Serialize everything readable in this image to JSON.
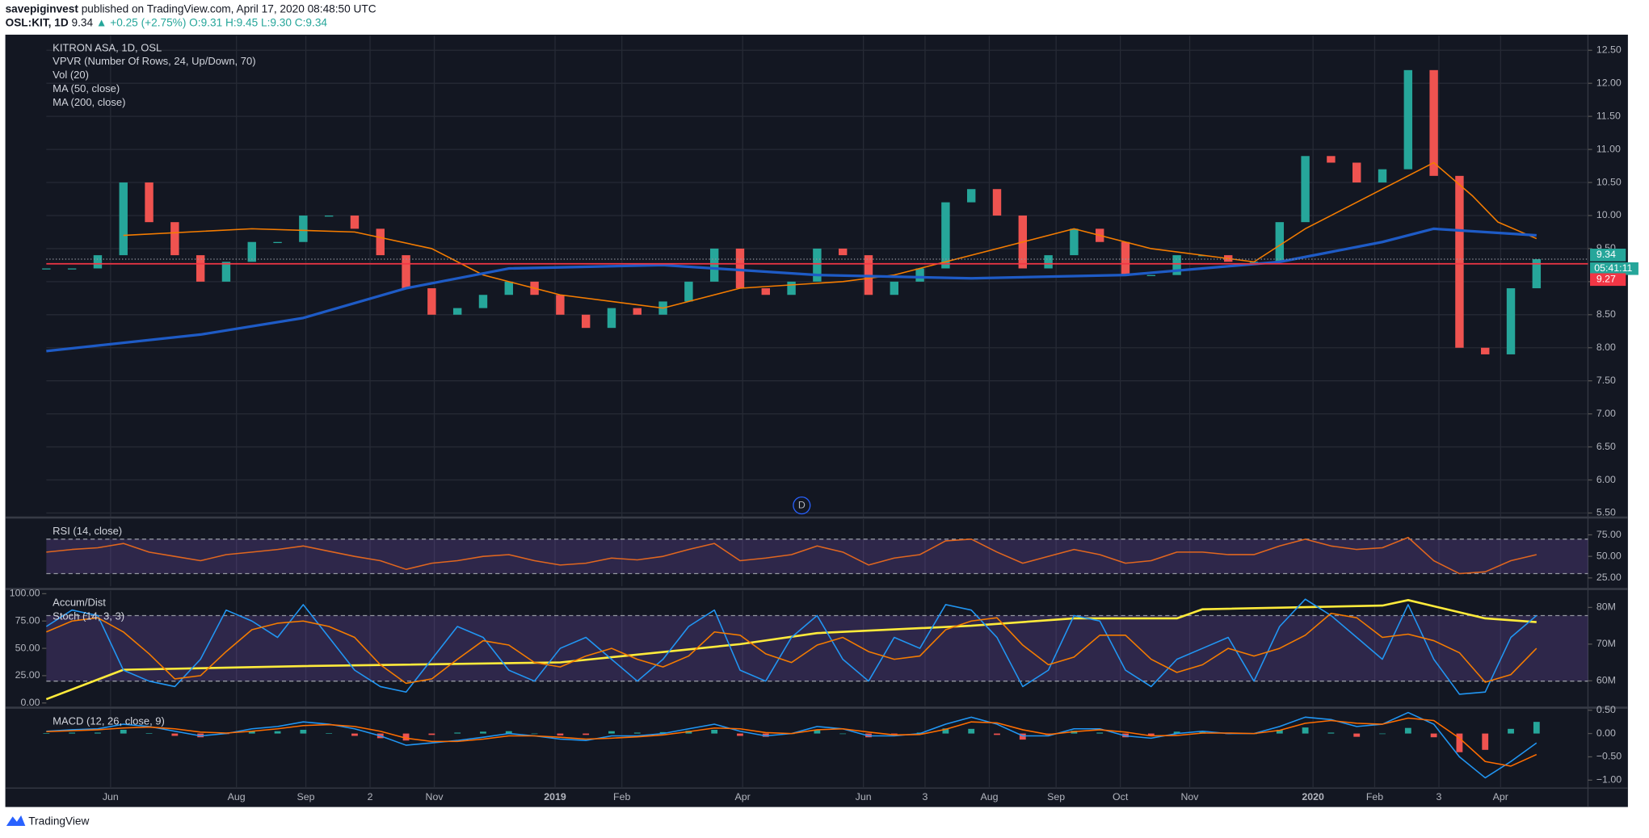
{
  "header": {
    "publisher": "savepiginvest",
    "published": "published on TradingView.com, April 17, 2020 08:48:50 UTC",
    "symbol": "OSL:KIT, 1D",
    "last": "9.34",
    "change": "▲ +0.25 (+2.75%)",
    "ohlc": [
      "O:9.31",
      "H:9.45",
      "L:9.30",
      "C:9.34"
    ]
  },
  "footer": "TradingView",
  "chart_data": [
    {
      "type": "line",
      "title": "KITRON ASA, 1D, OSL",
      "studies": [
        "VPVR (Number Of Rows, 24, Up/Down, 70)",
        "Vol (20)"
      ],
      "xlim": [
        0,
        60
      ],
      "xticks": [
        {
          "value": 2.5,
          "label": "Jun"
        },
        {
          "value": 7.4,
          "label": "Aug"
        },
        {
          "value": 10.1,
          "label": "Sep"
        },
        {
          "value": 12.6,
          "label": "2"
        },
        {
          "value": 15.1,
          "label": "Nov"
        },
        {
          "value": 19.8,
          "label": "2019"
        },
        {
          "value": 22.4,
          "label": "Feb"
        },
        {
          "value": 27.1,
          "label": "Apr"
        },
        {
          "value": 31.8,
          "label": "Jun"
        },
        {
          "value": 34.2,
          "label": "3"
        },
        {
          "value": 36.7,
          "label": "Aug"
        },
        {
          "value": 39.3,
          "label": "Sep"
        },
        {
          "value": 41.8,
          "label": "Oct"
        },
        {
          "value": 44.5,
          "label": "Nov"
        },
        {
          "value": 49.3,
          "label": "2020"
        },
        {
          "value": 51.7,
          "label": "Feb"
        },
        {
          "value": 54.2,
          "label": "3"
        },
        {
          "value": 56.6,
          "label": "Apr"
        }
      ],
      "x": [
        0,
        1,
        2,
        3,
        4,
        5,
        6,
        7,
        8,
        9,
        10,
        11,
        12,
        13,
        14,
        15,
        16,
        17,
        18,
        19,
        20,
        21,
        22,
        23,
        24,
        25,
        26,
        27,
        28,
        29,
        30,
        31,
        32,
        33,
        34,
        35,
        36,
        37,
        38,
        39,
        40,
        41,
        42,
        43,
        44,
        45,
        46,
        47,
        48,
        49,
        50,
        51,
        52,
        53,
        54,
        55,
        56,
        57,
        58
      ],
      "ylim": [
        5.44,
        12.72
      ],
      "yticks": [
        {
          "value": 5.5,
          "label": "5.50"
        },
        {
          "value": 6,
          "label": "6.00"
        },
        {
          "value": 6.5,
          "label": "6.50"
        },
        {
          "value": 7,
          "label": "7.00"
        },
        {
          "value": 7.5,
          "label": "7.50"
        },
        {
          "value": 8,
          "label": "8.00"
        },
        {
          "value": 8.5,
          "label": "8.50"
        },
        {
          "value": 9,
          "label": "9.00"
        },
        {
          "value": 9.5,
          "label": "9.50"
        },
        {
          "value": 10,
          "label": "10.00"
        },
        {
          "value": 10.5,
          "label": "10.50"
        },
        {
          "value": 11,
          "label": "11.00"
        },
        {
          "value": 11.5,
          "label": "11.50"
        },
        {
          "value": 12,
          "label": "12.00"
        },
        {
          "value": 12.5,
          "label": "12.50"
        }
      ],
      "grid": true,
      "series": [
        {
          "type": "bars",
          "up_color": "#26a69a",
          "down_color": "#ef5350",
          "values": [
            9.2,
            9.2,
            9.4,
            10.5,
            9.9,
            9.4,
            9.0,
            9.3,
            9.6,
            9.6,
            10.0,
            10.0,
            9.8,
            9.4,
            8.9,
            8.5,
            8.6,
            8.8,
            9.0,
            8.8,
            8.5,
            8.3,
            8.6,
            8.5,
            8.7,
            9.0,
            9.5,
            8.9,
            8.8,
            9.0,
            9.5,
            9.4,
            8.8,
            9.0,
            9.2,
            10.2,
            10.4,
            10.0,
            9.2,
            9.4,
            9.8,
            9.6,
            9.1,
            9.1,
            9.4,
            9.4,
            9.3,
            9.3,
            9.9,
            10.9,
            10.8,
            10.5,
            10.7,
            12.2,
            10.6,
            8.0,
            7.9,
            8.9,
            9.34
          ]
        },
        {
          "name": "MA (50, close)",
          "color": "#f57c00",
          "x": [
            3,
            8,
            12,
            15,
            17,
            20,
            24,
            27,
            31,
            33,
            37,
            40,
            43,
            47,
            49,
            51,
            54,
            55.5,
            56.5,
            58
          ],
          "values": [
            9.7,
            9.8,
            9.75,
            9.5,
            9.1,
            8.8,
            8.6,
            8.9,
            9.0,
            9.1,
            9.5,
            9.8,
            9.5,
            9.3,
            9.8,
            10.2,
            10.8,
            10.3,
            9.9,
            9.65
          ]
        },
        {
          "name": "MA (200, close)",
          "color": "#1e5bc6",
          "x": [
            0,
            6,
            10,
            14,
            18,
            24,
            30,
            36,
            42,
            48,
            52,
            54,
            58
          ],
          "values": [
            7.95,
            8.2,
            8.45,
            8.9,
            9.2,
            9.25,
            9.1,
            9.05,
            9.1,
            9.3,
            9.6,
            9.8,
            9.7
          ]
        }
      ],
      "price_lines": [
        {
          "value": 9.34,
          "label": "9.34",
          "color": "#26a69a"
        },
        {
          "value": 9.27,
          "label": "9.27",
          "color": "#f23645"
        }
      ],
      "countdown": "05:41:11",
      "annotations": [
        {
          "x": 29.4,
          "label": "D"
        }
      ]
    },
    {
      "type": "line",
      "title": "RSI (14, close)",
      "ylim": [
        15.2,
        93.3
      ],
      "yticks": [
        {
          "value": 25,
          "label": "25.00"
        },
        {
          "value": 50,
          "label": "50.00"
        },
        {
          "value": 75,
          "label": "75.00"
        }
      ],
      "band": [
        30,
        70
      ],
      "band_color": "#7e57c2",
      "series": [
        {
          "color": "#e0661f",
          "values": [
            55,
            58,
            60,
            65,
            55,
            50,
            45,
            52,
            55,
            58,
            62,
            56,
            50,
            45,
            35,
            42,
            45,
            50,
            52,
            45,
            40,
            42,
            48,
            46,
            50,
            58,
            65,
            45,
            48,
            52,
            62,
            55,
            40,
            48,
            52,
            68,
            70,
            55,
            42,
            50,
            58,
            52,
            42,
            45,
            55,
            55,
            52,
            52,
            62,
            70,
            62,
            58,
            60,
            72,
            45,
            30,
            32,
            45,
            52
          ]
        }
      ]
    },
    {
      "type": "line",
      "ylim": [
        -2.9,
        102.9
      ],
      "ytick_side": "left",
      "yticks": [
        {
          "value": 0,
          "label": "0.00"
        },
        {
          "value": 25,
          "label": "25.00"
        },
        {
          "value": 50,
          "label": "50.00"
        },
        {
          "value": 75,
          "label": "75.00"
        },
        {
          "value": 100,
          "label": "100.00"
        }
      ],
      "y2lim": [
        53100000,
        84600000
      ],
      "y2ticks": [
        {
          "value": 60000000,
          "label": "60M"
        },
        {
          "value": 70000000,
          "label": "70M"
        },
        {
          "value": 80000000,
          "label": "80M"
        }
      ],
      "band": [
        20,
        80
      ],
      "band_color": "#7e57c2",
      "series": [
        {
          "name": "Accum/Dist",
          "color": "#ffeb3b",
          "axis": "y2",
          "x": [
            0,
            3,
            10,
            20,
            27,
            30,
            36,
            40,
            44,
            45,
            52,
            53,
            56,
            58
          ],
          "values": [
            55000000,
            63000000,
            64000000,
            65000000,
            70000000,
            73000000,
            75000000,
            77000000,
            77000000,
            79500000,
            80500000,
            82000000,
            77000000,
            76000000
          ]
        },
        {
          "name": "Stoch (14, 3, 3)",
          "color": "#2196f3",
          "values": [
            70,
            85,
            80,
            30,
            20,
            15,
            40,
            85,
            75,
            60,
            90,
            60,
            30,
            15,
            10,
            40,
            70,
            60,
            30,
            20,
            50,
            60,
            40,
            20,
            40,
            70,
            85,
            30,
            20,
            60,
            80,
            40,
            20,
            60,
            50,
            90,
            85,
            60,
            15,
            30,
            80,
            75,
            30,
            15,
            40,
            50,
            60,
            20,
            70,
            95,
            80,
            60,
            40,
            90,
            40,
            8,
            10,
            60,
            80
          ]
        },
        {
          "color": "#f57c00",
          "values": [
            65,
            75,
            78,
            65,
            45,
            22,
            25,
            47,
            67,
            73,
            75,
            70,
            60,
            35,
            18,
            22,
            40,
            57,
            53,
            37,
            33,
            43,
            50,
            40,
            33,
            43,
            65,
            62,
            45,
            37,
            53,
            60,
            47,
            40,
            43,
            67,
            75,
            78,
            53,
            35,
            42,
            62,
            62,
            40,
            28,
            35,
            50,
            43,
            50,
            62,
            82,
            78,
            60,
            63,
            57,
            46,
            19,
            26,
            50
          ]
        }
      ]
    },
    {
      "type": "line",
      "title": "MACD (12, 26, close, 9)",
      "ylim": [
        -1.17,
        0.52
      ],
      "yticks": [
        {
          "value": -1,
          "label": "−1.00"
        },
        {
          "value": -0.5,
          "label": "−0.50"
        },
        {
          "value": 0,
          "label": "0.00"
        },
        {
          "value": 0.5,
          "label": "0.50"
        }
      ],
      "series": [
        {
          "type": "histogram",
          "up_color": "#26a69a",
          "down_color": "#ef5350",
          "values": [
            0.01,
            0.02,
            0.02,
            0.08,
            0.01,
            -0.05,
            -0.08,
            -0.01,
            0.05,
            0.05,
            0.08,
            0.01,
            -0.05,
            -0.1,
            -0.15,
            -0.03,
            0.02,
            0.04,
            0.05,
            0,
            -0.04,
            -0.03,
            0.05,
            0.02,
            0.03,
            0.06,
            0.08,
            -0.05,
            -0.07,
            0,
            0.07,
            0,
            -0.08,
            -0.02,
            0.02,
            0.11,
            0.1,
            -0.03,
            -0.13,
            -0.03,
            0.06,
            0.02,
            -0.08,
            -0.05,
            0.04,
            0.04,
            -0.01,
            0,
            0.08,
            0.13,
            0.02,
            -0.07,
            0,
            0.12,
            -0.08,
            -0.4,
            -0.35,
            0.1,
            0.25
          ]
        },
        {
          "color": "#2196f3",
          "values": [
            0.05,
            0.08,
            0.1,
            0.2,
            0.15,
            0.05,
            -0.05,
            0,
            0.1,
            0.15,
            0.25,
            0.2,
            0.1,
            -0.05,
            -0.25,
            -0.2,
            -0.15,
            -0.08,
            0,
            -0.05,
            -0.12,
            -0.15,
            -0.05,
            -0.05,
            0,
            0.1,
            0.2,
            0.05,
            -0.05,
            0,
            0.15,
            0.1,
            -0.05,
            -0.05,
            0,
            0.2,
            0.35,
            0.2,
            -0.05,
            -0.05,
            0.1,
            0.1,
            -0.05,
            -0.1,
            0,
            0.05,
            0,
            0,
            0.15,
            0.35,
            0.3,
            0.15,
            0.2,
            0.45,
            0.2,
            -0.5,
            -0.95,
            -0.6,
            -0.2
          ]
        },
        {
          "color": "#ff6d00",
          "values": [
            0.04,
            0.06,
            0.08,
            0.12,
            0.14,
            0.1,
            0.03,
            0.01,
            0.05,
            0.1,
            0.17,
            0.19,
            0.15,
            0.05,
            -0.1,
            -0.17,
            -0.17,
            -0.12,
            -0.05,
            -0.05,
            -0.08,
            -0.12,
            -0.1,
            -0.07,
            -0.03,
            0.04,
            0.12,
            0.1,
            0.02,
            0,
            0.08,
            0.1,
            0.03,
            -0.03,
            -0.02,
            0.09,
            0.25,
            0.23,
            0.08,
            -0.02,
            0.04,
            0.08,
            0.03,
            -0.05,
            -0.04,
            0.01,
            0.01,
            0,
            0.07,
            0.22,
            0.28,
            0.22,
            0.2,
            0.33,
            0.28,
            -0.1,
            -0.6,
            -0.7,
            -0.45
          ]
        }
      ]
    }
  ]
}
